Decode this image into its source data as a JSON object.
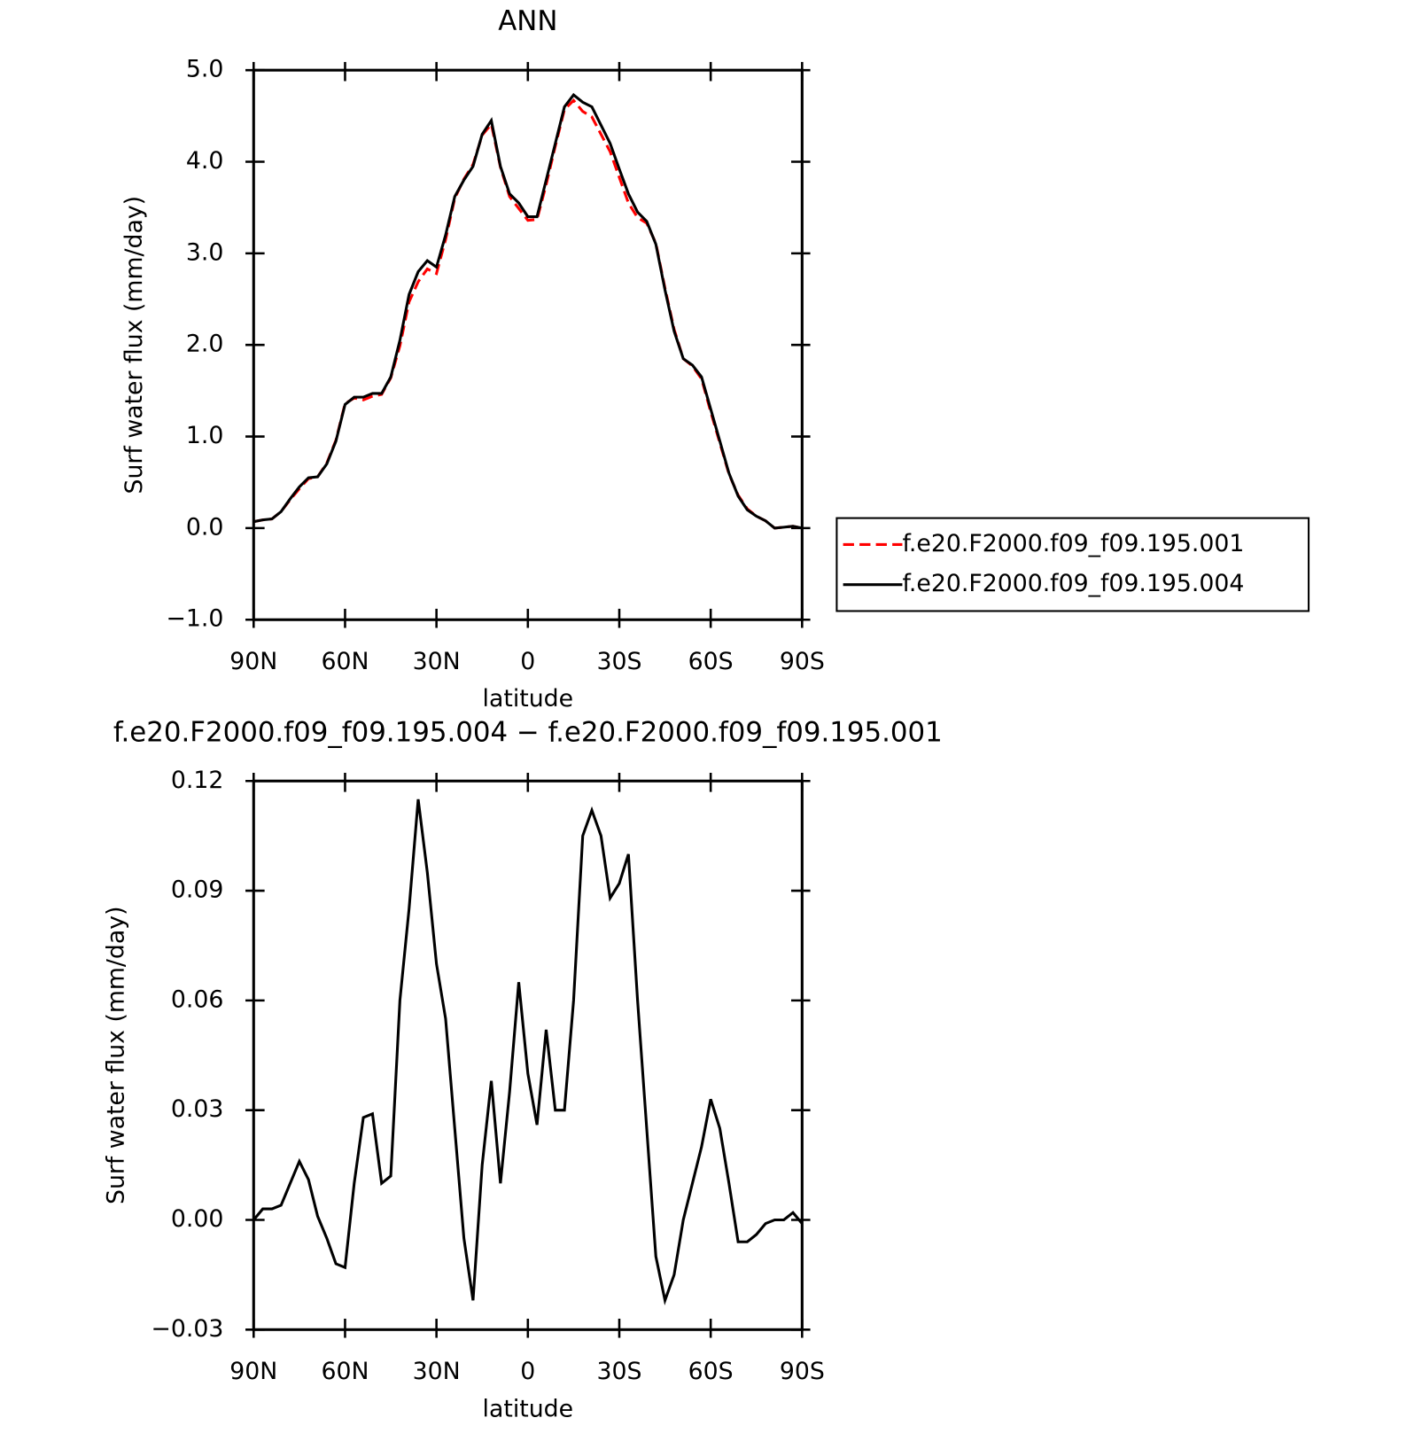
{
  "chart_data": [
    {
      "type": "line",
      "title": "ANN",
      "xlabel": "latitude",
      "ylabel": "Surf water flux (mm/day)",
      "x": [
        90,
        87,
        84,
        81,
        78,
        75,
        72,
        69,
        66,
        63,
        60,
        57,
        54,
        51,
        48,
        45,
        42,
        39,
        36,
        33,
        30,
        27,
        24,
        21,
        18,
        15,
        12,
        9,
        6,
        3,
        0,
        -3,
        -6,
        -9,
        -12,
        -15,
        -18,
        -21,
        -24,
        -27,
        -30,
        -33,
        -36,
        -39,
        -42,
        -45,
        -48,
        -51,
        -54,
        -57,
        -60,
        -63,
        -66,
        -69,
        -72,
        -75,
        -78,
        -81,
        -84,
        -87,
        -90
      ],
      "series": [
        {
          "name": "f.e20.F2000.f09_f09.195.001",
          "color": "#ff0000",
          "linestyle": "dashed",
          "values": [
            0.07,
            0.09,
            0.1,
            0.18,
            0.31,
            0.43,
            0.54,
            0.56,
            0.71,
            0.96,
            1.36,
            1.42,
            1.4,
            1.44,
            1.46,
            1.64,
            1.99,
            2.47,
            2.69,
            2.83,
            2.78,
            3.15,
            3.6,
            3.81,
            3.97,
            4.29,
            4.41,
            3.94,
            3.62,
            3.49,
            3.36,
            3.37,
            3.75,
            4.17,
            4.57,
            4.67,
            4.55,
            4.49,
            4.3,
            4.11,
            3.83,
            3.55,
            3.39,
            3.33,
            3.11,
            2.62,
            2.17,
            1.85,
            1.77,
            1.63,
            1.27,
            0.93,
            0.59,
            0.36,
            0.21,
            0.13,
            0.08,
            0.0,
            0.01,
            0.02,
            0.0
          ]
        },
        {
          "name": "f.e20.F2000.f09_f09.195.004",
          "color": "#000000",
          "linestyle": "solid",
          "values": [
            0.07,
            0.09,
            0.1,
            0.18,
            0.32,
            0.45,
            0.55,
            0.56,
            0.7,
            0.95,
            1.35,
            1.43,
            1.43,
            1.47,
            1.47,
            1.65,
            2.05,
            2.55,
            2.8,
            2.92,
            2.85,
            3.2,
            3.62,
            3.8,
            3.95,
            4.3,
            4.45,
            3.95,
            3.65,
            3.55,
            3.4,
            3.4,
            3.8,
            4.2,
            4.6,
            4.73,
            4.65,
            4.6,
            4.4,
            4.2,
            3.92,
            3.65,
            3.45,
            3.35,
            3.1,
            2.6,
            2.15,
            1.85,
            1.78,
            1.65,
            1.3,
            0.95,
            0.6,
            0.35,
            0.2,
            0.13,
            0.08,
            0.0,
            0.01,
            0.02,
            0.0
          ]
        }
      ],
      "xlim": [
        90,
        -90
      ],
      "xticks": [
        {
          "value": 90,
          "label": "90N"
        },
        {
          "value": 60,
          "label": "60N"
        },
        {
          "value": 30,
          "label": "30N"
        },
        0,
        {
          "value": -30,
          "label": "30S"
        },
        {
          "value": -60,
          "label": "60S"
        },
        {
          "value": -90,
          "label": "90S"
        }
      ],
      "ylim": [
        -1,
        5
      ],
      "yticks": [
        {
          "value": -1,
          "label": "−1.0"
        },
        {
          "value": 0,
          "label": "0.0"
        },
        {
          "value": 1,
          "label": "1.0"
        },
        {
          "value": 2,
          "label": "2.0"
        },
        {
          "value": 3,
          "label": "3.0"
        },
        {
          "value": 4,
          "label": "4.0"
        },
        {
          "value": 5,
          "label": "5.0"
        }
      ],
      "legend": "outside-right"
    },
    {
      "type": "line",
      "title": "f.e20.F2000.f09_f09.195.004 − f.e20.F2000.f09_f09.195.001",
      "xlabel": "latitude",
      "ylabel": "Surf water flux (mm/day)",
      "x": [
        90,
        87,
        84,
        81,
        78,
        75,
        72,
        69,
        66,
        63,
        60,
        57,
        54,
        51,
        48,
        45,
        42,
        39,
        36,
        33,
        30,
        27,
        24,
        21,
        18,
        15,
        12,
        9,
        6,
        3,
        0,
        -3,
        -6,
        -9,
        -12,
        -15,
        -18,
        -21,
        -24,
        -27,
        -30,
        -33,
        -36,
        -39,
        -42,
        -45,
        -48,
        -51,
        -54,
        -57,
        -60,
        -63,
        -66,
        -69,
        -72,
        -75,
        -78,
        -81,
        -84,
        -87,
        -90
      ],
      "series": [
        {
          "color": "#000000",
          "linestyle": "solid",
          "values": [
            0.0,
            0.003,
            0.003,
            0.004,
            0.01,
            0.016,
            0.011,
            0.001,
            -0.005,
            -0.012,
            -0.013,
            0.01,
            0.028,
            0.029,
            0.01,
            0.012,
            0.06,
            0.085,
            0.115,
            0.095,
            0.07,
            0.055,
            0.025,
            -0.005,
            -0.022,
            0.015,
            0.038,
            0.01,
            0.035,
            0.065,
            0.04,
            0.026,
            0.052,
            0.03,
            0.03,
            0.06,
            0.105,
            0.112,
            0.105,
            0.088,
            0.092,
            0.1,
            0.06,
            0.025,
            -0.01,
            -0.022,
            -0.015,
            0.0,
            0.01,
            0.02,
            0.033,
            0.025,
            0.01,
            -0.006,
            -0.006,
            -0.004,
            -0.001,
            0.0,
            0.0,
            0.002,
            -0.001
          ]
        }
      ],
      "xlim": [
        90,
        -90
      ],
      "xticks": [
        {
          "value": 90,
          "label": "90N"
        },
        {
          "value": 60,
          "label": "60N"
        },
        {
          "value": 30,
          "label": "30N"
        },
        0,
        {
          "value": -30,
          "label": "30S"
        },
        {
          "value": -60,
          "label": "60S"
        },
        {
          "value": -90,
          "label": "90S"
        }
      ],
      "ylim": [
        -0.03,
        0.12
      ],
      "yticks": [
        {
          "value": -0.03,
          "label": "−0.03"
        },
        {
          "value": 0,
          "label": "0.00"
        },
        0.03,
        0.06,
        0.09,
        0.12
      ]
    }
  ]
}
